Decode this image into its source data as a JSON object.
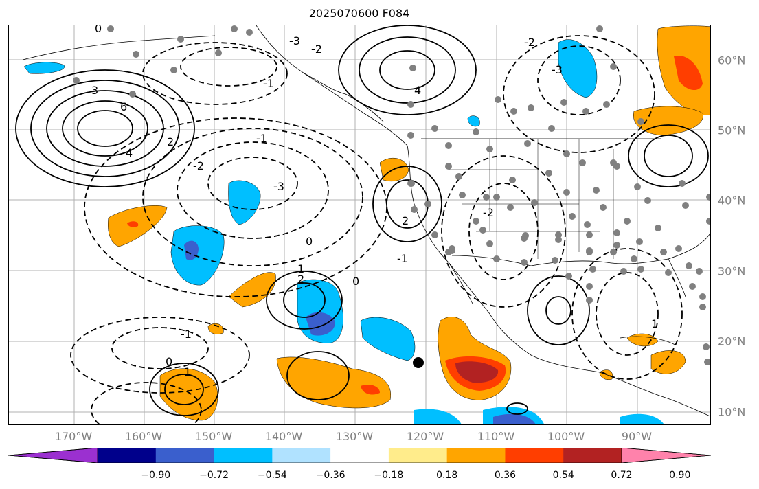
{
  "title": "2025070600 F084",
  "lon_labels": [
    "170°W",
    "160°W",
    "150°W",
    "140°W",
    "130°W",
    "120°W",
    "110°W",
    "100°W",
    "90°W"
  ],
  "lat_labels": [
    "60°N",
    "50°N",
    "40°N",
    "30°N",
    "20°N",
    "10°N"
  ],
  "colorbar": {
    "ticks": [
      "−0.90",
      "−0.72",
      "−0.54",
      "−0.36",
      "−0.18",
      "0.18",
      "0.36",
      "0.54",
      "0.72",
      "0.90"
    ],
    "colors": [
      "#9b30d0",
      "#00008b",
      "#3a5fcd",
      "#00bfff",
      "#b0e2ff",
      "#ffffff",
      "#ffec8b",
      "#ffa500",
      "#ff3e00",
      "#b22222",
      "#ff82ab"
    ]
  },
  "contour_labels": [
    "6",
    "4",
    "4",
    "3",
    "2",
    "2",
    "2",
    "1",
    "1",
    "1",
    "0",
    "0",
    "0",
    "0",
    "-1",
    "-1",
    "-1",
    "-1",
    "-2",
    "-2",
    "-2",
    "-2",
    "-3",
    "-3",
    "-3"
  ],
  "marker_color": "#000000"
}
